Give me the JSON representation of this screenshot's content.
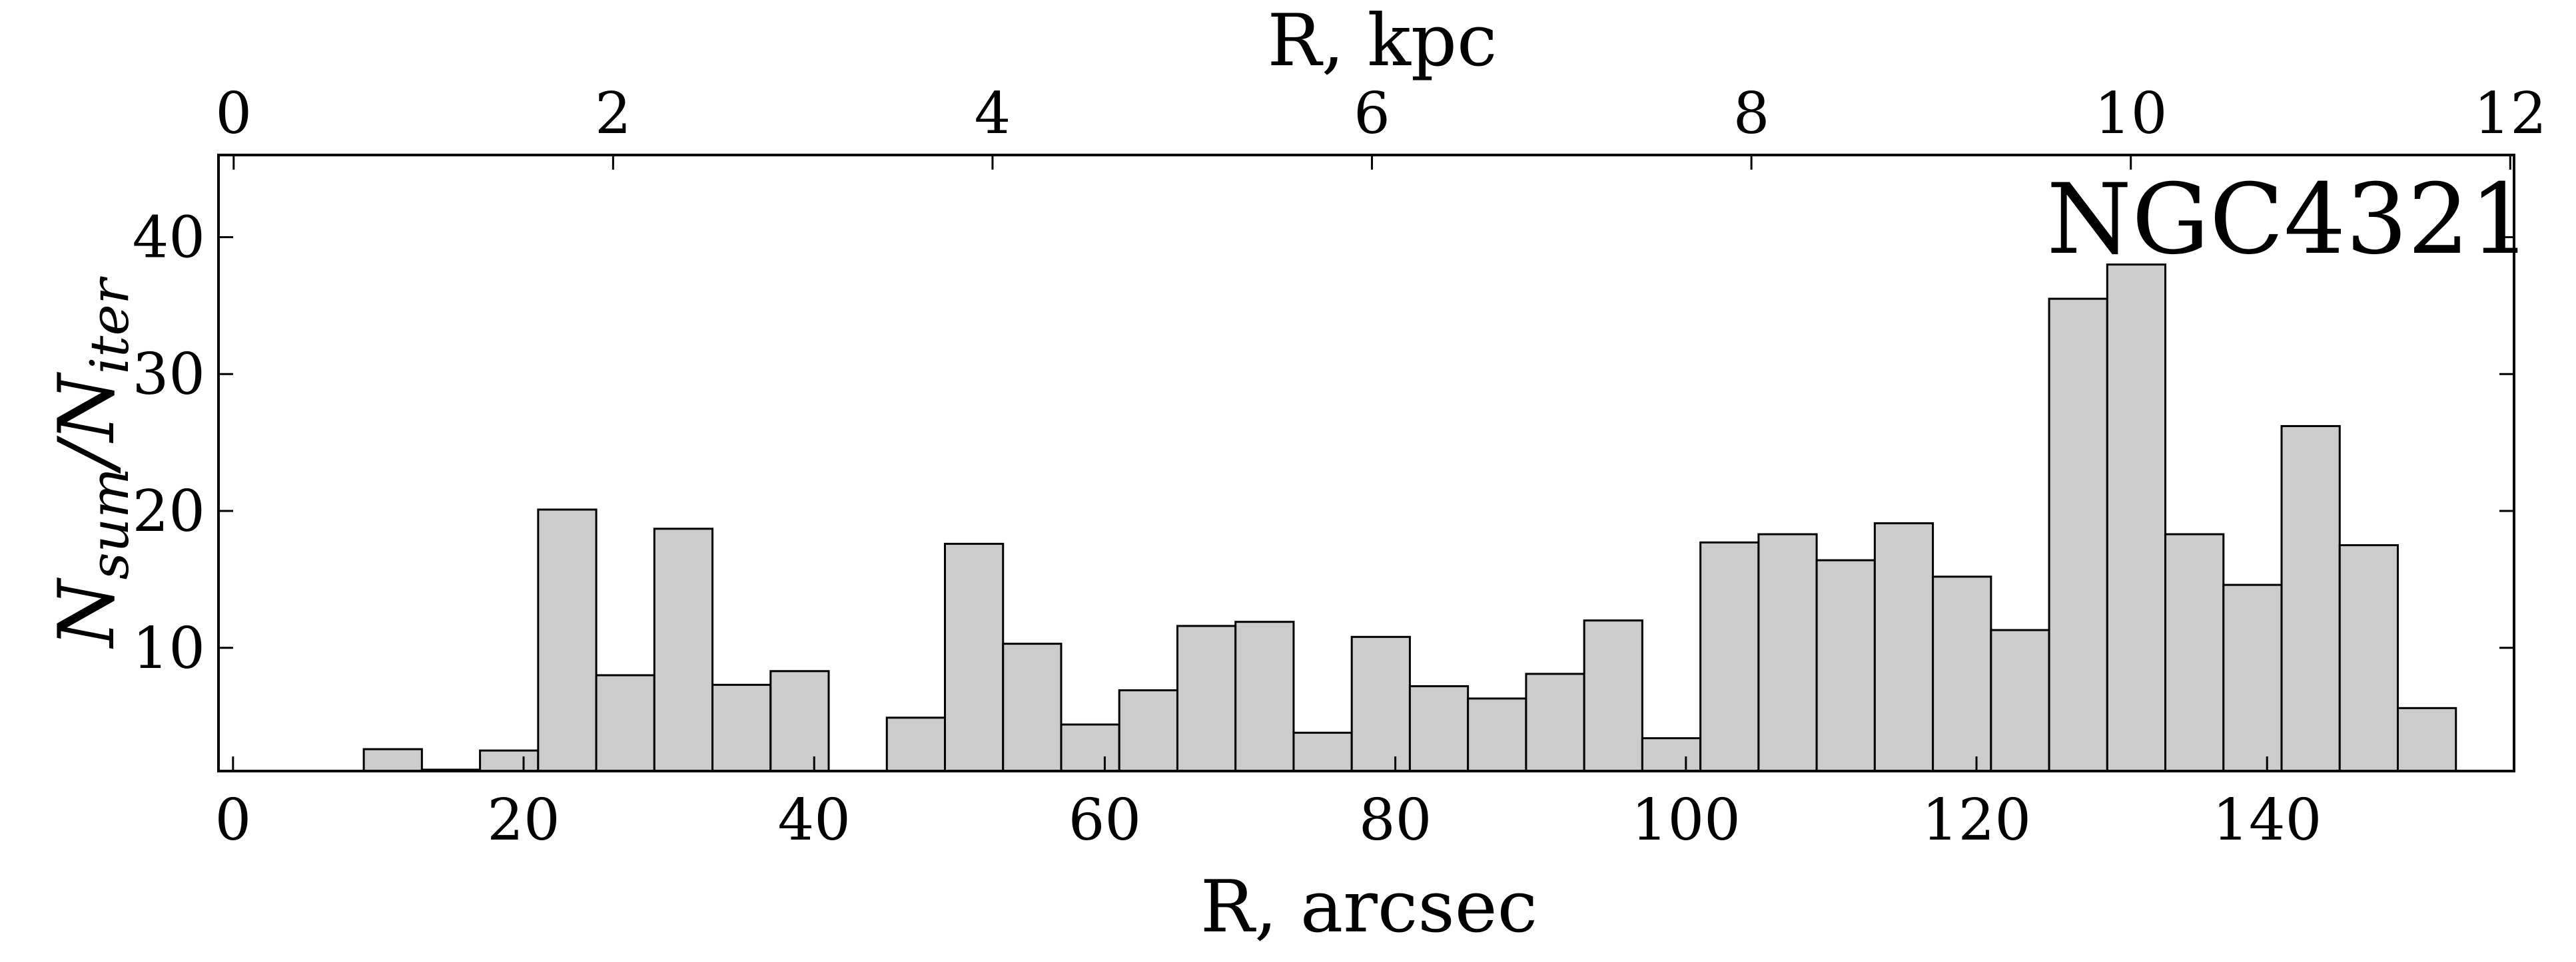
{
  "chart_data": {
    "type": "bar",
    "annotation": "NGC4321",
    "xlabel": "R, arcsec",
    "x2label": "R, kpc",
    "ylabel": {
      "base1": "N",
      "sub1": "sum",
      "sep": "/",
      "base2": "N",
      "sub2": "iter"
    },
    "xlim": [
      -1,
      157
    ],
    "ylim": [
      1,
      46
    ],
    "x_ticks": [
      0,
      20,
      40,
      60,
      80,
      100,
      120,
      140
    ],
    "x2_ticks": [
      0,
      2,
      4,
      6,
      8,
      10,
      12
    ],
    "x2lim": [
      -0.08,
      12.02
    ],
    "y_ticks": [
      10,
      20,
      30,
      40
    ],
    "bin_width": 4,
    "bin_starts": [
      9,
      13,
      17,
      21,
      25,
      29,
      33,
      37,
      41,
      45,
      49,
      53,
      57,
      61,
      65,
      69,
      73,
      77,
      81,
      85,
      89,
      93,
      97,
      101,
      105,
      109,
      113,
      117,
      121,
      125,
      129,
      133,
      137,
      141,
      145,
      149
    ],
    "values": [
      2.6,
      1.1,
      2.5,
      20.1,
      8.0,
      18.7,
      7.3,
      8.3,
      0,
      4.9,
      17.6,
      10.3,
      4.4,
      6.9,
      11.6,
      11.9,
      3.8,
      10.8,
      7.2,
      6.3,
      8.1,
      12.0,
      3.4,
      17.7,
      18.3,
      16.4,
      19.1,
      15.2,
      11.3,
      35.5,
      38.0,
      18.3,
      14.6,
      26.2,
      17.5,
      5.6
    ],
    "bar_color": "#cccccc",
    "edge_color": "#000000",
    "grid": false,
    "legend": false
  }
}
